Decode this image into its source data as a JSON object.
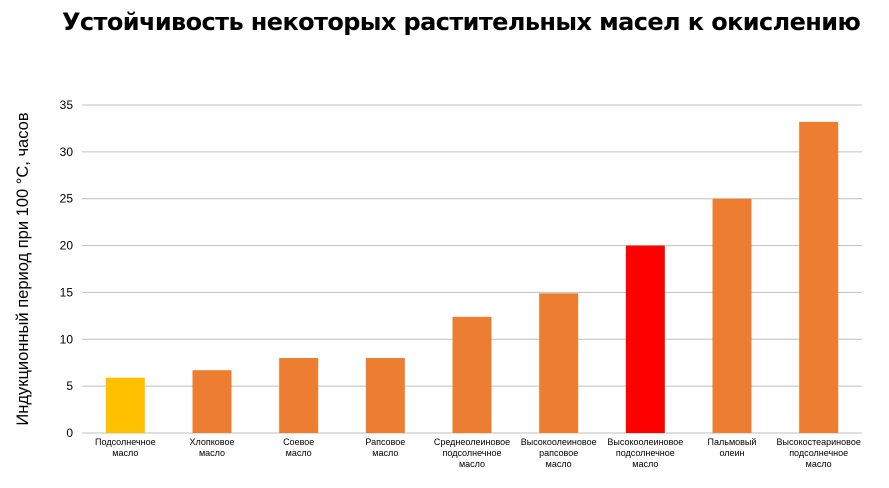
{
  "chart_data": {
    "type": "bar",
    "title": "Устойчивость некоторых растительных масел к окислению",
    "xlabel": "",
    "ylabel": "Индукционный период при 100 °C, часов",
    "ylim": [
      0,
      35
    ],
    "yticks": [
      0,
      5,
      10,
      15,
      20,
      25,
      30,
      35
    ],
    "grid": true,
    "categories": [
      [
        "Подсолнечное",
        "масло"
      ],
      [
        "Хлопковое",
        "масло"
      ],
      [
        "Соевое",
        "масло"
      ],
      [
        "Рапсовое",
        "масло"
      ],
      [
        "Среднеолеиновое",
        "подсолнечное",
        "масло"
      ],
      [
        "Высокоолеиновое",
        "рапсовое",
        "масло"
      ],
      [
        "Высокоолеиновое",
        "подсолнечное",
        "масло"
      ],
      [
        "Пальмовый",
        "олеин"
      ],
      [
        "Высокостеариновое",
        "подсолнечное",
        "масло"
      ]
    ],
    "values": [
      5.9,
      6.7,
      8.0,
      8.0,
      12.4,
      14.9,
      20.0,
      25.0,
      33.2
    ],
    "colors": [
      "#FFC000",
      "#ED7D31",
      "#ED7D31",
      "#ED7D31",
      "#ED7D31",
      "#ED7D31",
      "#FF0000",
      "#ED7D31",
      "#ED7D31"
    ],
    "gridline_color": "#BFBFBF"
  }
}
